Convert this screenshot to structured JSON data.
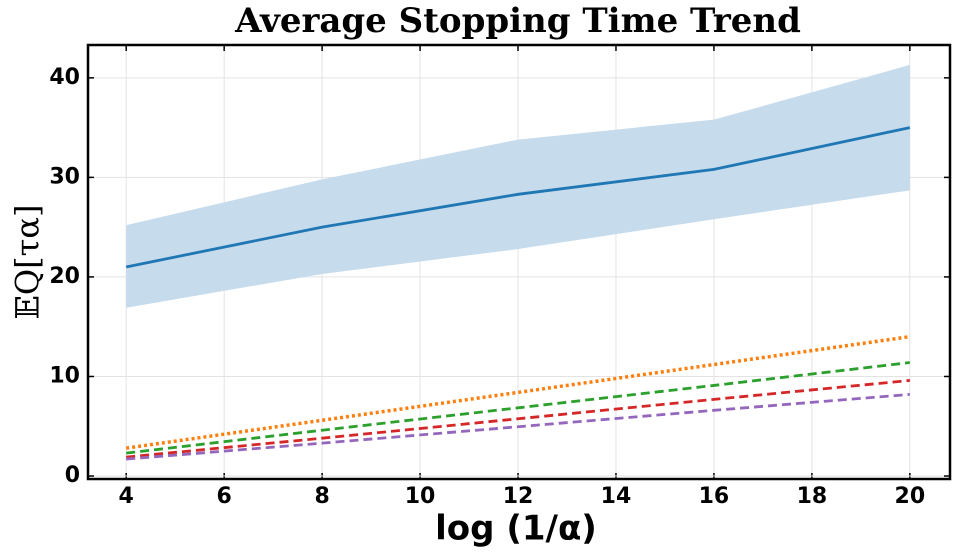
{
  "chart_data": {
    "type": "line",
    "title": "Average Stopping Time Trend",
    "xlabel": "log (1/α)",
    "ylabel": "𝔼Q[τα]",
    "x": [
      4,
      8,
      12,
      16,
      20
    ],
    "series": [
      {
        "color": "#1f77b4",
        "linestyle": "solid",
        "values": [
          21,
          25,
          28.3,
          30.8,
          35
        ],
        "lower": [
          16.9,
          20.3,
          22.8,
          25.8,
          28.7
        ],
        "upper": [
          25.2,
          29.8,
          33.8,
          35.8,
          41.3
        ],
        "band_color": "#c6dbec"
      },
      {
        "color": "#ff7f0e",
        "linestyle": "dotted",
        "values": [
          2.8,
          5.6,
          8.4,
          11.2,
          14
        ]
      },
      {
        "color": "#2ca02c",
        "linestyle": "dashed",
        "values": [
          2.3,
          4.6,
          6.85,
          9.1,
          11.4
        ]
      },
      {
        "color": "#d62728",
        "linestyle": "dashed",
        "values": [
          1.9,
          3.8,
          5.75,
          7.7,
          9.6
        ]
      },
      {
        "color": "#9467bd",
        "linestyle": "dashed",
        "values": [
          1.7,
          3.3,
          4.95,
          6.6,
          8.2
        ]
      }
    ],
    "xlim": [
      3.22,
      20.82
    ],
    "xticks": [
      4,
      6,
      8,
      10,
      12,
      14,
      16,
      18,
      20
    ],
    "ylim": [
      -0.3,
      43.3
    ],
    "yticks": [
      0,
      10,
      20,
      30,
      40
    ],
    "grid": true
  }
}
